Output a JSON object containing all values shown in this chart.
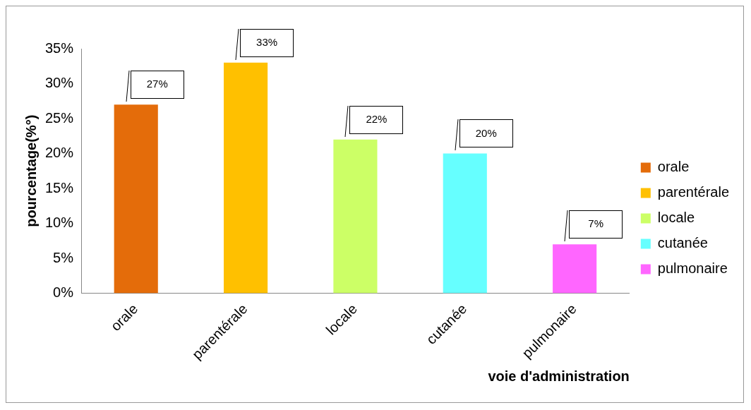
{
  "chart_data": {
    "type": "bar",
    "xlabel": "voie d'administration",
    "ylabel": "pourcentage(%°)",
    "categories": [
      "orale",
      "parentérale",
      "locale",
      "cutanée",
      "pulmonaire"
    ],
    "stacked": true,
    "series": [
      {
        "name": "orale",
        "color": "#e46c0a",
        "values": [
          27,
          null,
          null,
          null,
          null
        ],
        "value_labels": [
          "27%",
          null,
          null,
          null,
          null
        ]
      },
      {
        "name": "parentérale",
        "color": "#ffc000",
        "values": [
          null,
          33,
          null,
          null,
          null
        ],
        "value_labels": [
          null,
          "33%",
          null,
          null,
          null
        ]
      },
      {
        "name": "locale",
        "color": "#ccff66",
        "values": [
          null,
          null,
          22,
          null,
          null
        ],
        "value_labels": [
          null,
          null,
          "22%",
          null,
          null
        ]
      },
      {
        "name": "cutanée",
        "color": "#66ffff",
        "values": [
          null,
          null,
          null,
          20,
          null
        ],
        "value_labels": [
          null,
          null,
          null,
          "20%",
          null
        ]
      },
      {
        "name": "pulmonaire",
        "color": "#ff66ff",
        "values": [
          null,
          null,
          null,
          null,
          7
        ],
        "value_labels": [
          null,
          null,
          null,
          null,
          "7%"
        ]
      }
    ],
    "ylim": [
      0,
      35
    ],
    "yticks": [
      {
        "value": 0,
        "label": "0%"
      },
      {
        "value": 5,
        "label": "5%"
      },
      {
        "value": 10,
        "label": "10%"
      },
      {
        "value": 15,
        "label": "15%"
      },
      {
        "value": 20,
        "label": "20%"
      },
      {
        "value": 25,
        "label": "25%"
      },
      {
        "value": 30,
        "label": "30%"
      },
      {
        "value": 35,
        "label": "35%"
      }
    ],
    "grid": false,
    "legend": "right"
  }
}
